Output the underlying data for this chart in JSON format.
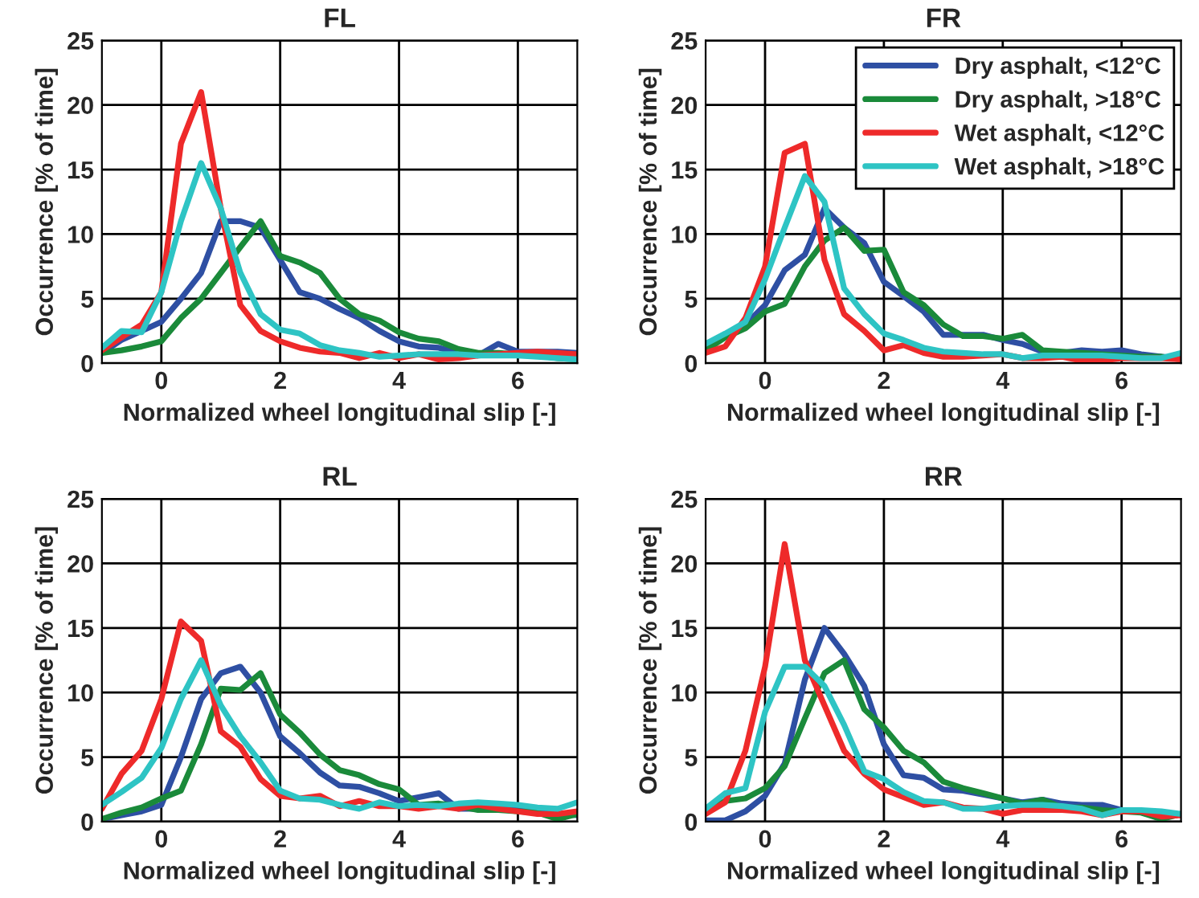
{
  "chart_data": [
    {
      "type": "line",
      "title": "FL",
      "xlabel": "Normalized wheel longitudinal slip [-]",
      "ylabel": "Occurrence [% of time]",
      "xlim": [
        -1,
        7
      ],
      "xticks": [
        0,
        2,
        4,
        6
      ],
      "ylim": [
        0,
        25
      ],
      "yticks": [
        0,
        5,
        10,
        15,
        20,
        25
      ],
      "grid": true,
      "line_style": "solid",
      "marker": "none",
      "x": [
        -1,
        -0.67,
        -0.33,
        0,
        0.33,
        0.67,
        1,
        1.33,
        1.67,
        2,
        2.33,
        2.67,
        3,
        3.33,
        3.67,
        4,
        4.33,
        4.67,
        5,
        5.33,
        5.67,
        6,
        6.33,
        6.67,
        7
      ],
      "series": [
        {
          "color": "#2e4fa3",
          "values": [
            0.8,
            1.8,
            2.5,
            3.2,
            5,
            7,
            11,
            11,
            10.5,
            8,
            5.5,
            5,
            4.2,
            3.5,
            2.5,
            1.7,
            1.3,
            1.2,
            0.8,
            0.6,
            1.5,
            0.9,
            0.9,
            0.9,
            0.8
          ]
        },
        {
          "color": "#1a8a3a",
          "values": [
            0.8,
            1.0,
            1.3,
            1.7,
            3.5,
            5,
            7,
            9,
            11,
            8.3,
            7.8,
            7,
            5,
            3.8,
            3.3,
            2.4,
            1.9,
            1.7,
            1.1,
            0.8,
            0.8,
            0.7,
            0.6,
            0.4,
            0.3
          ]
        },
        {
          "color": "#ee2a2a",
          "values": [
            1,
            2,
            3,
            5.5,
            17,
            21,
            12,
            4.5,
            2.5,
            1.7,
            1.2,
            0.9,
            0.8,
            0.4,
            0.8,
            0.4,
            0.7,
            0.3,
            0.4,
            0.6,
            0.7,
            0.8,
            0.9,
            0.8,
            0.7
          ]
        },
        {
          "color": "#2ec4c4",
          "values": [
            1.2,
            2.5,
            2.4,
            5.5,
            11,
            15.5,
            12,
            7,
            3.8,
            2.6,
            2.3,
            1.4,
            1.0,
            0.8,
            0.5,
            0.6,
            0.7,
            0.7,
            0.7,
            0.6,
            0.6,
            0.6,
            0.5,
            0.4,
            0.3
          ]
        }
      ]
    },
    {
      "type": "line",
      "title": "FR",
      "xlabel": "Normalized wheel longitudinal slip [-]",
      "ylabel": "Occurrence [% of time]",
      "xlim": [
        -1,
        7
      ],
      "xticks": [
        0,
        2,
        4,
        6
      ],
      "ylim": [
        0,
        25
      ],
      "yticks": [
        0,
        5,
        10,
        15,
        20,
        25
      ],
      "grid": true,
      "line_style": "solid",
      "marker": "none",
      "legend": "top right",
      "x": [
        -1,
        -0.67,
        -0.33,
        0,
        0.33,
        0.67,
        1,
        1.33,
        1.67,
        2,
        2.33,
        2.67,
        3,
        3.33,
        3.67,
        4,
        4.33,
        4.67,
        5,
        5.33,
        5.67,
        6,
        6.33,
        6.67,
        7
      ],
      "series": [
        {
          "name": "Dry asphalt, <12°C",
          "color": "#2e4fa3",
          "values": [
            1.0,
            2.2,
            3.0,
            4.5,
            7.2,
            8.4,
            12,
            10.5,
            9.3,
            6.3,
            5.2,
            4.0,
            2.2,
            2.2,
            2.2,
            1.8,
            1.5,
            0.9,
            0.8,
            1.0,
            0.9,
            1.0,
            0.7,
            0.5,
            0.4
          ]
        },
        {
          "name": "Dry asphalt, >18°C",
          "color": "#1a8a3a",
          "values": [
            1.0,
            2.0,
            2.7,
            4.0,
            4.6,
            7.5,
            9.5,
            10.5,
            8.7,
            8.8,
            5.5,
            4.5,
            3.0,
            2.1,
            2.1,
            1.9,
            2.2,
            1.0,
            0.9,
            0.8,
            0.7,
            0.6,
            0.5,
            0.5,
            0.3
          ]
        },
        {
          "name": "Wet asphalt, <12°C",
          "color": "#ee2a2a",
          "values": [
            0.8,
            1.3,
            3.5,
            7.5,
            16.3,
            17,
            8,
            3.8,
            2.5,
            1.0,
            1.4,
            0.8,
            0.5,
            0.5,
            0.6,
            0.7,
            0.4,
            0.4,
            0.5,
            0.2,
            0.2,
            0.4,
            0.4,
            0.4,
            0.3
          ]
        },
        {
          "name": "Wet asphalt, >18°C",
          "color": "#2ec4c4",
          "values": [
            1.5,
            2.3,
            3.2,
            6.5,
            10.5,
            14.5,
            12.5,
            5.8,
            3.8,
            2.3,
            1.8,
            1.2,
            0.9,
            0.8,
            0.7,
            0.7,
            0.4,
            0.6,
            0.6,
            0.6,
            0.6,
            0.5,
            0.4,
            0.4,
            0.8
          ]
        }
      ]
    },
    {
      "type": "line",
      "title": "RL",
      "xlabel": "Normalized wheel longitudinal slip [-]",
      "ylabel": "Occurrence [% of time]",
      "xlim": [
        -1,
        7
      ],
      "xticks": [
        0,
        2,
        4,
        6
      ],
      "ylim": [
        0,
        25
      ],
      "yticks": [
        0,
        5,
        10,
        15,
        20,
        25
      ],
      "grid": true,
      "line_style": "solid",
      "marker": "none",
      "x": [
        -1,
        -0.67,
        -0.33,
        0,
        0.33,
        0.67,
        1,
        1.33,
        1.67,
        2,
        2.33,
        2.67,
        3,
        3.33,
        3.67,
        4,
        4.33,
        4.67,
        5,
        5.33,
        5.67,
        6,
        6.33,
        6.67,
        7
      ],
      "series": [
        {
          "color": "#2e4fa3",
          "values": [
            0.2,
            0.5,
            0.8,
            1.3,
            5,
            9.5,
            11.5,
            12,
            10,
            6.6,
            5.3,
            3.8,
            2.8,
            2.7,
            2.2,
            1.6,
            1.9,
            2.2,
            1.0,
            1.0,
            1.2,
            1.1,
            0.9,
            0.6,
            0.5
          ]
        },
        {
          "color": "#1a8a3a",
          "values": [
            0.2,
            0.7,
            1.1,
            1.8,
            2.4,
            6,
            10.3,
            10.2,
            11.5,
            8.3,
            6.9,
            5.2,
            4.0,
            3.6,
            2.9,
            2.5,
            1.3,
            1.4,
            1.2,
            0.9,
            0.9,
            0.8,
            0.7,
            0.2,
            0.6
          ]
        },
        {
          "color": "#ee2a2a",
          "values": [
            1,
            3.7,
            5.5,
            9.5,
            15.5,
            14,
            7,
            5.8,
            3.3,
            2.0,
            1.8,
            2.0,
            1.2,
            1.6,
            1.2,
            1.2,
            1.0,
            1.2,
            1.0,
            1.3,
            1.0,
            0.8,
            0.6,
            0.6,
            0.8
          ]
        },
        {
          "color": "#2ec4c4",
          "values": [
            1.3,
            2.3,
            3.4,
            5.7,
            9.5,
            12.5,
            9,
            6.6,
            4.6,
            2.4,
            1.8,
            1.7,
            1.3,
            1.0,
            1.5,
            1.2,
            1.3,
            1.2,
            1.4,
            1.5,
            1.4,
            1.3,
            1.1,
            1.0,
            1.5
          ]
        }
      ]
    },
    {
      "type": "line",
      "title": "RR",
      "xlabel": "Normalized wheel longitudinal slip [-]",
      "ylabel": "Occurrence [% of time]",
      "xlim": [
        -1,
        7
      ],
      "xticks": [
        0,
        2,
        4,
        6
      ],
      "ylim": [
        0,
        25
      ],
      "yticks": [
        0,
        5,
        10,
        15,
        20,
        25
      ],
      "grid": true,
      "line_style": "solid",
      "marker": "none",
      "x": [
        -1,
        -0.67,
        -0.33,
        0,
        0.33,
        0.67,
        1,
        1.33,
        1.67,
        2,
        2.33,
        2.67,
        3,
        3.33,
        3.67,
        4,
        4.33,
        4.67,
        5,
        5.33,
        5.67,
        6,
        6.33,
        6.67,
        7
      ],
      "series": [
        {
          "color": "#2e4fa3",
          "values": [
            0.1,
            0.1,
            0.8,
            2.0,
            4.5,
            11,
            15,
            13,
            10.5,
            6,
            3.6,
            3.4,
            2.5,
            2.4,
            2.1,
            1.8,
            1.5,
            1.7,
            1.4,
            1.3,
            1.3,
            0.9,
            0.8,
            null,
            null
          ]
        },
        {
          "color": "#1a8a3a",
          "values": [
            0.8,
            1.6,
            1.8,
            2.6,
            4.3,
            8,
            11.5,
            12.5,
            8.7,
            7.3,
            5.5,
            4.6,
            3.1,
            2.6,
            2.2,
            1.8,
            1.4,
            1.7,
            1.1,
            1.1,
            0.9,
            0.8,
            0.7,
            0.2,
            0.6
          ]
        },
        {
          "color": "#ee2a2a",
          "values": [
            0.6,
            1.5,
            5.5,
            12,
            21.5,
            12.5,
            9,
            5.5,
            3.7,
            2.5,
            1.9,
            1.3,
            1.5,
            1.1,
            1.0,
            0.6,
            0.9,
            0.9,
            0.9,
            0.8,
            0.5,
            0.8,
            0.8,
            0.4,
            0.5
          ]
        },
        {
          "color": "#2ec4c4",
          "values": [
            1.0,
            2.2,
            2.6,
            8.5,
            12,
            12,
            10.5,
            7.5,
            3.9,
            3.3,
            2.3,
            1.6,
            1.5,
            1.0,
            1.0,
            1.2,
            1.3,
            1.3,
            1.2,
            1.0,
            0.5,
            0.9,
            0.9,
            0.8,
            0.6
          ]
        }
      ]
    }
  ]
}
